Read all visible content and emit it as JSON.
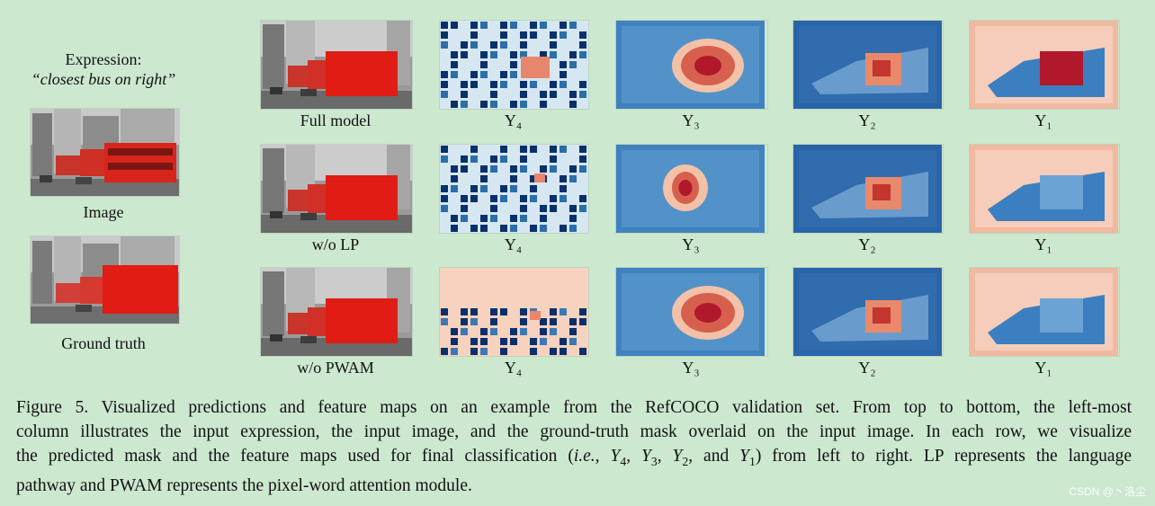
{
  "left_panel": {
    "expression_title": "Expression:",
    "expression_text": "“closest bus on right”",
    "image_label": "Image",
    "ground_truth_label": "Ground truth"
  },
  "rows": [
    {
      "model_label": "Full model",
      "maps": [
        "Y₄",
        "Y₃",
        "Y₂",
        "Y₁"
      ]
    },
    {
      "model_label": "w/o LP",
      "maps": [
        "Y₄",
        "Y₃",
        "Y₂",
        "Y₁"
      ]
    },
    {
      "model_label": "w/o PWAM",
      "maps": [
        "Y₄",
        "Y₃",
        "Y₂",
        "Y₁"
      ]
    }
  ],
  "caption": {
    "line1": "Figure 5.  Visualized predictions and feature maps on an example from the RefCOCO validation set.  From top to bottom, the left-most",
    "line2": "column illustrates the input expression, the input image, and the ground-truth mask overlaid on the input image. In each row, we visualize",
    "line3_a": "the predicted mask and the feature maps used for final classification (",
    "line3_ie": "i.e.",
    "line3_b": ", ",
    "line3_y4": "Y",
    "line3_y4_sub": "4",
    "line3_c": ", ",
    "line3_y3": "Y",
    "line3_y3_sub": "3",
    "line3_d": ", ",
    "line3_y2": "Y",
    "line3_y2_sub": "2",
    "line3_e": ", and ",
    "line3_y1": "Y",
    "line3_y1_sub": "1",
    "line3_f": ") from left to right. LP represents the language",
    "line4": "pathway and PWAM represents the pixel-word attention module."
  },
  "watermark": "CSDN @丶洛尘",
  "colors": {
    "background": "#cce8cf",
    "bus_red": "#d9241c",
    "heat_red": "#b2182b",
    "heat_blue": "#2166ac",
    "heat_dark_blue": "#08306b"
  }
}
